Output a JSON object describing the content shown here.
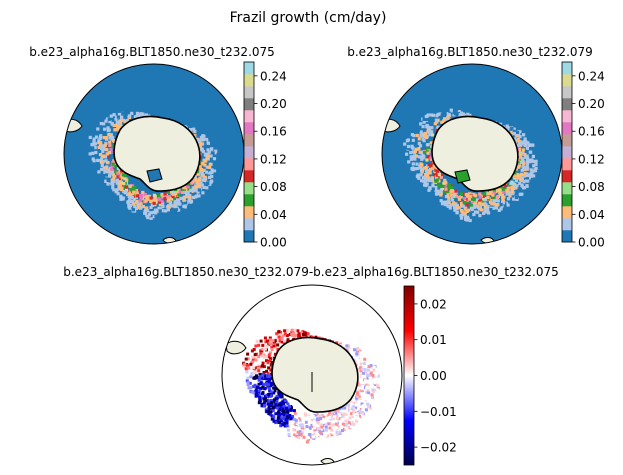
{
  "figure": {
    "suptitle": "Frazil growth (cm/day)"
  },
  "colors": {
    "ocean": "#1f77b4",
    "land": "#efefdf",
    "coast": "#000000",
    "tab10": [
      "#1f77b4",
      "#ff7f0e",
      "#2ca02c",
      "#d62728",
      "#9467bd",
      "#8c564b",
      "#e377c2",
      "#7f7f7f",
      "#bcbd22",
      "#17becf"
    ],
    "tab20": [
      "#1f77b4",
      "#aec7e8",
      "#ffbb78",
      "#2ca02c",
      "#98df8a",
      "#d62728",
      "#ff9896",
      "#c5b0d5",
      "#c49c94",
      "#e377c2",
      "#f7b6d2",
      "#7f7f7f",
      "#c7c7c7",
      "#dbdb8d",
      "#9edae5"
    ],
    "seismic": [
      "#00004c",
      "#0000ff",
      "#ffffff",
      "#ff0000",
      "#800000"
    ]
  },
  "chart_data": [
    {
      "type": "heatmap",
      "projection": "south-polar-stereographic",
      "title": "b.e23_alpha16g.BLT1850.ne30_t232.075",
      "colorbar": {
        "colormap": "tab20",
        "range": [
          0,
          0.26
        ],
        "ticks": [
          0.0,
          0.04,
          0.08,
          0.12,
          0.16,
          0.2,
          0.24
        ],
        "tick_labels": [
          "0.00",
          "0.04",
          "0.08",
          "0.12",
          "0.16",
          "0.20",
          "0.24"
        ]
      }
    },
    {
      "type": "heatmap",
      "projection": "south-polar-stereographic",
      "title": "b.e23_alpha16g.BLT1850.ne30_t232.079",
      "colorbar": {
        "colormap": "tab20",
        "range": [
          0,
          0.26
        ],
        "ticks": [
          0.0,
          0.04,
          0.08,
          0.12,
          0.16,
          0.2,
          0.24
        ],
        "tick_labels": [
          "0.00",
          "0.04",
          "0.08",
          "0.12",
          "0.16",
          "0.20",
          "0.24"
        ]
      }
    },
    {
      "type": "heatmap",
      "projection": "south-polar-stereographic",
      "title": "b.e23_alpha16g.BLT1850.ne30_t232.079-b.e23_alpha16g.BLT1850.ne30_t232.075",
      "colorbar": {
        "colormap": "seismic",
        "range": [
          -0.025,
          0.025
        ],
        "ticks": [
          -0.02,
          -0.01,
          0.0,
          0.01,
          0.02
        ],
        "tick_labels": [
          "−0.02",
          "−0.01",
          "0.00",
          "0.01",
          "0.02"
        ]
      }
    }
  ]
}
